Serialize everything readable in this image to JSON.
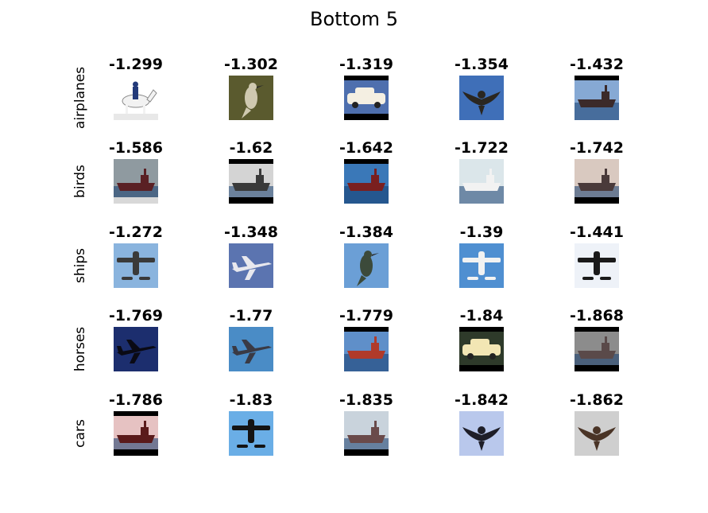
{
  "title": "Bottom 5",
  "rows": [
    {
      "label": "airplanes",
      "cells": [
        {
          "score": "-1.299",
          "icon": "horse-rider-image",
          "bg": "#ffffff",
          "fg": "#f2f2f2",
          "band_top": null,
          "band_bottom": "#e8e8e8"
        },
        {
          "score": "-1.302",
          "icon": "bird-image",
          "bg": "#5a5a2e",
          "fg": "#cfc9b0",
          "band_top": null,
          "band_bottom": null
        },
        {
          "score": "-1.319",
          "icon": "car-image",
          "bg": "#4e6fae",
          "fg": "#f4efe2",
          "band_top": "#000000",
          "band_bottom": "#000000"
        },
        {
          "score": "-1.354",
          "icon": "eagle-image",
          "bg": "#3f6fb8",
          "fg": "#2a2620",
          "band_top": null,
          "band_bottom": null
        },
        {
          "score": "-1.432",
          "icon": "ship-image",
          "bg": "#86a9d4",
          "fg": "#3b2a2a",
          "band_top": "#000000",
          "band_bottom": null
        }
      ]
    },
    {
      "label": "birds",
      "cells": [
        {
          "score": "-1.586",
          "icon": "ship-image",
          "bg": "#8f9aa0",
          "fg": "#5a2024",
          "band_top": null,
          "band_bottom": "#d8d8d8"
        },
        {
          "score": "-1.62",
          "icon": "warship-image",
          "bg": "#d4d4d4",
          "fg": "#3a3a3a",
          "band_top": "#000000",
          "band_bottom": "#000000"
        },
        {
          "score": "-1.642",
          "icon": "ship-image",
          "bg": "#3a78b8",
          "fg": "#7a1f1f",
          "band_top": "#000000",
          "band_bottom": null
        },
        {
          "score": "-1.722",
          "icon": "cruise-ship-image",
          "bg": "#dbe6ea",
          "fg": "#f2f2f2",
          "band_top": null,
          "band_bottom": null
        },
        {
          "score": "-1.742",
          "icon": "ship-image",
          "bg": "#d9c9c0",
          "fg": "#4a3a3a",
          "band_top": null,
          "band_bottom": "#000000"
        }
      ]
    },
    {
      "label": "ships",
      "cells": [
        {
          "score": "-1.272",
          "icon": "seaplane-image",
          "bg": "#8ab4de",
          "fg": "#3a3a3a",
          "band_top": null,
          "band_bottom": null
        },
        {
          "score": "-1.348",
          "icon": "airliner-image",
          "bg": "#5b74b0",
          "fg": "#e8e8ee",
          "band_top": null,
          "band_bottom": null
        },
        {
          "score": "-1.384",
          "icon": "hummingbird-image",
          "bg": "#6b9fd6",
          "fg": "#3c4a3a",
          "band_top": null,
          "band_bottom": null
        },
        {
          "score": "-1.39",
          "icon": "propeller-plane-image",
          "bg": "#4f8fd1",
          "fg": "#f2f2f2",
          "band_top": null,
          "band_bottom": null
        },
        {
          "score": "-1.441",
          "icon": "seaplane-image",
          "bg": "#eef2f8",
          "fg": "#1a1a1a",
          "band_top": null,
          "band_bottom": null
        }
      ]
    },
    {
      "label": "horses",
      "cells": [
        {
          "score": "-1.769",
          "icon": "jet-image",
          "bg": "#1c2e6e",
          "fg": "#0a0a14",
          "band_top": null,
          "band_bottom": null
        },
        {
          "score": "-1.77",
          "icon": "fighter-jet-image",
          "bg": "#4a8cc6",
          "fg": "#3a3a44",
          "band_top": null,
          "band_bottom": null
        },
        {
          "score": "-1.779",
          "icon": "container-ship-image",
          "bg": "#5f8fc9",
          "fg": "#b03a2a",
          "band_top": "#000000",
          "band_bottom": null
        },
        {
          "score": "-1.84",
          "icon": "car-image",
          "bg": "#2e3a2a",
          "fg": "#f2e6b4",
          "band_top": "#000000",
          "band_bottom": "#000000"
        },
        {
          "score": "-1.868",
          "icon": "ship-image",
          "bg": "#8c8c8c",
          "fg": "#5a4a4a",
          "band_top": "#000000",
          "band_bottom": "#000000"
        }
      ]
    },
    {
      "label": "cars",
      "cells": [
        {
          "score": "-1.786",
          "icon": "ship-image",
          "bg": "#e6c2c2",
          "fg": "#5a1a1a",
          "band_top": "#000000",
          "band_bottom": "#000000"
        },
        {
          "score": "-1.83",
          "icon": "seaplane-image",
          "bg": "#6aaee6",
          "fg": "#141414",
          "band_top": null,
          "band_bottom": null
        },
        {
          "score": "-1.835",
          "icon": "ship-image",
          "bg": "#c9d3dc",
          "fg": "#6a4a4a",
          "band_top": null,
          "band_bottom": "#000000"
        },
        {
          "score": "-1.842",
          "icon": "eagle-image",
          "bg": "#b9c8ec",
          "fg": "#1e1e28",
          "band_top": null,
          "band_bottom": null
        },
        {
          "score": "-1.862",
          "icon": "eagle-image",
          "bg": "#cfcfcf",
          "fg": "#4a3426",
          "band_top": null,
          "band_bottom": null
        }
      ]
    }
  ]
}
